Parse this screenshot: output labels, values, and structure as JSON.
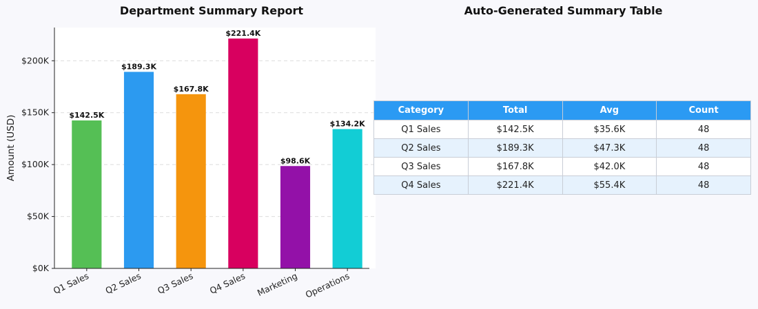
{
  "chart_data": {
    "type": "bar",
    "title": "Department Summary Report",
    "ylabel": "Amount (USD)",
    "categories": [
      "Q1 Sales",
      "Q2 Sales",
      "Q3 Sales",
      "Q4 Sales",
      "Marketing",
      "Operations"
    ],
    "values": [
      142.5,
      189.3,
      167.8,
      221.4,
      98.6,
      134.2
    ],
    "value_labels": [
      "$142.5K",
      "$189.3K",
      "$167.8K",
      "$221.4K",
      "$98.6K",
      "$134.2K"
    ],
    "colors": [
      "#55bf55",
      "#2c9af0",
      "#f5950d",
      "#d8005f",
      "#9311a8",
      "#12cdd5"
    ],
    "ylim": [
      0,
      232
    ],
    "yticks": [
      0,
      50,
      100,
      150,
      200
    ],
    "ytick_labels": [
      "$0K",
      "$50K",
      "$100K",
      "$150K",
      "$200K"
    ],
    "grid": "horizontal-dashed",
    "unit": "thousands USD"
  },
  "table": {
    "title": "Auto-Generated Summary Table",
    "headers": [
      "Category",
      "Total",
      "Avg",
      "Count"
    ],
    "header_color": "#2b9af3",
    "rows": [
      [
        "Q1 Sales",
        "$142.5K",
        "$35.6K",
        "48"
      ],
      [
        "Q2 Sales",
        "$189.3K",
        "$47.3K",
        "48"
      ],
      [
        "Q3 Sales",
        "$167.8K",
        "$42.0K",
        "48"
      ],
      [
        "Q4 Sales",
        "$221.4K",
        "$55.4K",
        "48"
      ]
    ]
  }
}
